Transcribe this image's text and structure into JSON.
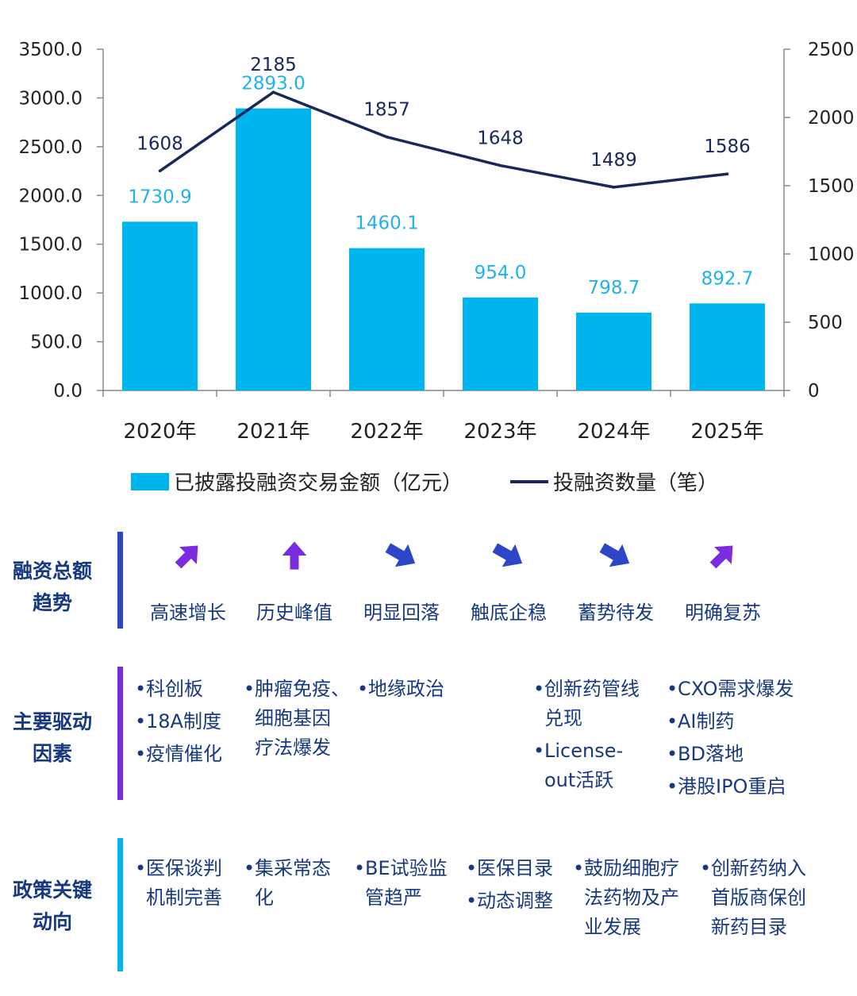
{
  "colors": {
    "bar": "#00b5ee",
    "bar_label": "#21b3e8",
    "line": "#17285a",
    "text_blue": "#17397f",
    "blue_bar": "#2d46c8",
    "purple_bar": "#7b2be0",
    "cyan_bar": "#00b5ee"
  },
  "chart_data": {
    "type": "bar",
    "categories": [
      "2020年",
      "2021年",
      "2022年",
      "2023年",
      "2024年",
      "2025年"
    ],
    "series": [
      {
        "name": "已披露投融资交易金额（亿元）",
        "type": "bar",
        "axis": "left",
        "values": [
          1730.9,
          2893.0,
          1460.1,
          954.0,
          798.7,
          892.7
        ],
        "labels": [
          "1730.9",
          "2893.0",
          "1460.1",
          "954.0",
          "798.7",
          "892.7"
        ]
      },
      {
        "name": "投融资数量（笔）",
        "type": "line",
        "axis": "right",
        "values": [
          1608,
          2185,
          1857,
          1648,
          1489,
          1586
        ],
        "labels": [
          "1608",
          "2185",
          "1857",
          "1648",
          "1489",
          "1586"
        ]
      }
    ],
    "y_left": {
      "min": 0,
      "max": 3500,
      "ticks": [
        "0.0",
        "500.0",
        "1000.0",
        "1500.0",
        "2000.0",
        "2500.0",
        "3000.0",
        "3500.0"
      ]
    },
    "y_right": {
      "min": 0,
      "max": 2500,
      "ticks": [
        "0",
        "500",
        "1000",
        "1500",
        "2000",
        "2500"
      ]
    },
    "legend_position": "bottom",
    "grid": false
  },
  "sections": {
    "trend": {
      "title": [
        "融资总额",
        "趋势"
      ],
      "items": [
        {
          "label": "高速增长",
          "arrow": "arrow-up-right-icon",
          "color": "#7b2be0"
        },
        {
          "label": "历史峰值",
          "arrow": "arrow-up-icon",
          "color": "#7b2be0"
        },
        {
          "label": "明显回落",
          "arrow": "arrow-down-right-icon",
          "color": "#2d46c8"
        },
        {
          "label": "触底企稳",
          "arrow": "arrow-down-right-icon",
          "color": "#2d46c8"
        },
        {
          "label": "蓄势待发",
          "arrow": "arrow-down-right-icon",
          "color": "#2d46c8"
        },
        {
          "label": "明确复苏",
          "arrow": "arrow-up-right-icon",
          "color": "#7b2be0"
        }
      ]
    },
    "drivers": {
      "title": [
        "主要驱动",
        "因素"
      ],
      "columns": [
        [
          [
            "科创板"
          ],
          [
            "18A制度"
          ],
          [
            "疫情催化"
          ]
        ],
        [
          [
            "肿瘤免疫、",
            "细胞基因",
            "疗法爆发"
          ]
        ],
        [
          [
            "地缘政治"
          ]
        ],
        [
          [
            "创新药管线",
            "兑现"
          ],
          [
            "License-",
            "out活跃"
          ]
        ],
        [
          [
            "CXO需求爆发"
          ],
          [
            "AI制药"
          ],
          [
            "BD落地"
          ],
          [
            "港股IPO重启"
          ]
        ]
      ]
    },
    "policy": {
      "title": [
        "政策关键",
        "动向"
      ],
      "columns": [
        [
          [
            "医保谈判",
            "机制完善"
          ]
        ],
        [
          [
            "集采常态",
            "化"
          ]
        ],
        [
          [
            "BE试验监",
            "管趋严"
          ]
        ],
        [
          [
            "医保目录"
          ],
          [
            "动态调整"
          ]
        ],
        [
          [
            "鼓励细胞疗",
            "法药物及产",
            "业发展"
          ]
        ],
        [
          [
            "创新药纳入",
            "首版商保创",
            "新药目录"
          ]
        ]
      ]
    }
  }
}
